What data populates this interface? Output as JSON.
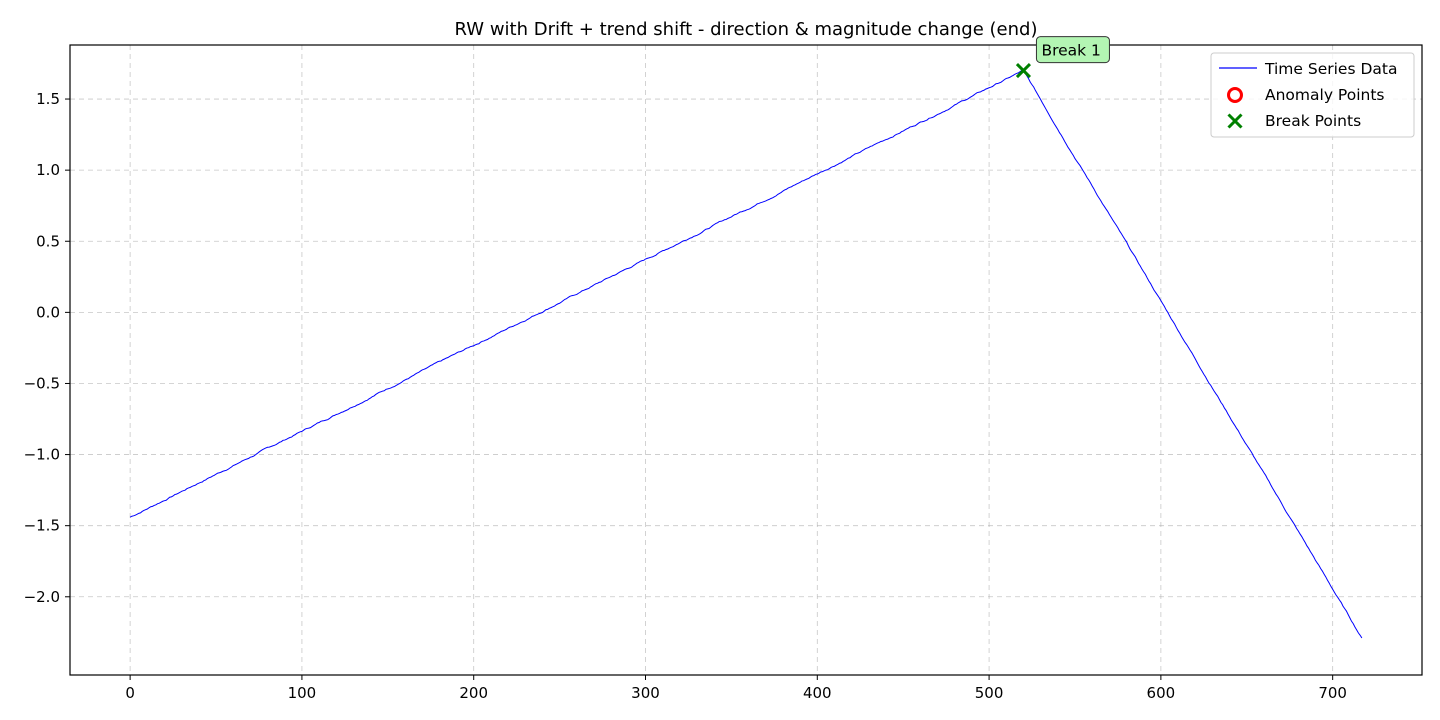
{
  "chart_data": {
    "type": "line",
    "title": "RW with Drift + trend shift - direction & magnitude change (end)",
    "xlabel": "",
    "ylabel": "",
    "xlim": [
      -35,
      752
    ],
    "ylim": [
      -2.55,
      1.88
    ],
    "x_ticks": [
      0,
      100,
      200,
      300,
      400,
      500,
      600,
      700
    ],
    "y_ticks": [
      -2.0,
      -1.5,
      -1.0,
      -0.5,
      0.0,
      0.5,
      1.0,
      1.5
    ],
    "x_tick_labels": [
      "0",
      "100",
      "200",
      "300",
      "400",
      "500",
      "600",
      "700"
    ],
    "y_tick_labels": [
      "−2.0",
      "−1.5",
      "−1.0",
      "−0.5",
      "0.0",
      "0.5",
      "1.0",
      "1.5"
    ],
    "grid": true,
    "legend_position": "top-right",
    "series": [
      {
        "name": "Time Series Data",
        "kind": "line",
        "color": "#0000ff",
        "segments": [
          {
            "x_start": 0,
            "x_end": 520,
            "y_start": -1.44,
            "y_end": 1.7
          },
          {
            "x_start": 520,
            "x_end": 717,
            "y_start": 1.7,
            "y_end": -2.29
          }
        ]
      },
      {
        "name": "Anomaly Points",
        "kind": "marker-circle",
        "color": "#ff0000",
        "points": []
      },
      {
        "name": "Break Points",
        "kind": "marker-x",
        "color": "#008000",
        "points": [
          {
            "x": 520,
            "y": 1.7
          }
        ]
      }
    ],
    "annotations": [
      {
        "text": "Break 1",
        "x": 520,
        "y": 1.7,
        "background": "#b3f5b3"
      }
    ]
  }
}
